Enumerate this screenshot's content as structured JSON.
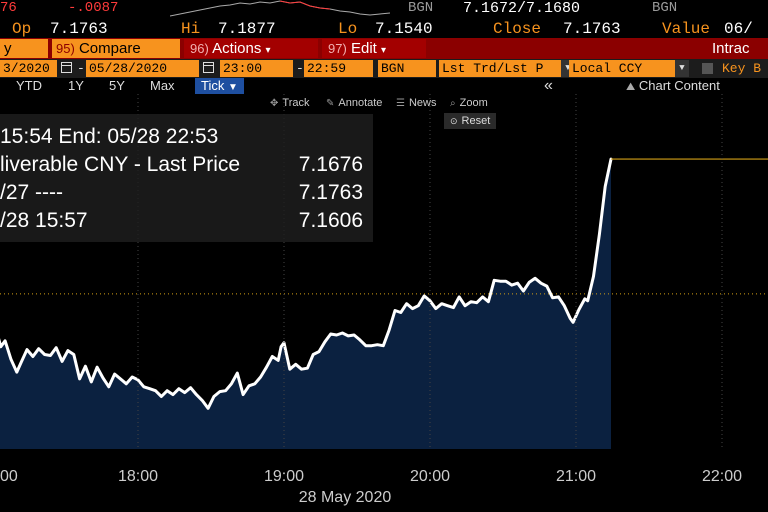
{
  "quote": {
    "code_fragment": "76",
    "net_change": "-.0087",
    "source": "BGN",
    "bid_ask": "7.1672/7.1680",
    "source2": "BGN",
    "open_label": "Op",
    "open": "7.1763",
    "high_label": "Hi",
    "high": "7.1877",
    "low_label": "Lo",
    "low": "7.1540",
    "close_label": "Close",
    "close": "7.1763",
    "value_label": "Value",
    "value_fragment": "06/"
  },
  "menu": {
    "fragment_label": "y",
    "compare_num": "95)",
    "compare_label": "Compare",
    "actions_num": "96)",
    "actions_label": "Actions",
    "edit_num": "97)",
    "edit_label": "Edit",
    "right_label": "Intrac"
  },
  "controls": {
    "start_date": "3/2020",
    "end_date": "05/28/2020",
    "start_time": "23:00",
    "end_time": "22:59",
    "source": "BGN",
    "price_field": "Lst Trd/Lst P",
    "currency": "Local CCY",
    "key_label": "Key B"
  },
  "periods": [
    "YTD",
    "1Y",
    "5Y",
    "Max"
  ],
  "period_selected": "Tick",
  "period_arrow": "▼",
  "chart_content_label": "Chart Content",
  "collapse_icon": "«",
  "tools": {
    "track": "Track",
    "annotate": "Annotate",
    "news": "News",
    "zoom": "Zoom",
    "reset": "Reset"
  },
  "info": {
    "line1": "15:54 End: 05/28 22:53",
    "line2_label": "liverable CNY - Last Price",
    "line2_value": "7.1676",
    "line3_label": "/27 ----",
    "line3_value": "7.1763",
    "line4_label": "/28 15:57",
    "line4_value": "7.1606"
  },
  "chart_data": {
    "type": "area",
    "x_ticks": [
      "00",
      "18:00",
      "19:00",
      "20:00",
      "21:00",
      "22:00"
    ],
    "x_tick_hours": [
      17.0,
      18.0,
      19.0,
      20.0,
      21.0,
      22.0
    ],
    "xlabel": "28 May 2020",
    "ylim": [
      7.15,
      7.185
    ],
    "reference_level": 7.1672,
    "last_value": 7.181,
    "series": [
      {
        "values": [
          [
            16.98,
            7.1636
          ],
          [
            17.02,
            7.164
          ],
          [
            17.06,
            7.1618
          ],
          [
            17.09,
            7.1624
          ],
          [
            17.13,
            7.1605
          ],
          [
            17.17,
            7.1592
          ],
          [
            17.2,
            7.1602
          ],
          [
            17.24,
            7.1615
          ],
          [
            17.28,
            7.1608
          ],
          [
            17.32,
            7.1616
          ],
          [
            17.36,
            7.161
          ],
          [
            17.4,
            7.1609
          ],
          [
            17.44,
            7.1617
          ],
          [
            17.48,
            7.1603
          ],
          [
            17.52,
            7.1614
          ],
          [
            17.56,
            7.161
          ],
          [
            17.6,
            7.1585
          ],
          [
            17.64,
            7.1598
          ],
          [
            17.68,
            7.1582
          ],
          [
            17.72,
            7.1597
          ],
          [
            17.76,
            7.1586
          ],
          [
            17.8,
            7.1577
          ],
          [
            17.84,
            7.159
          ],
          [
            17.88,
            7.1585
          ],
          [
            17.92,
            7.158
          ],
          [
            17.96,
            7.1587
          ],
          [
            18.0,
            7.1584
          ],
          [
            18.04,
            7.1577
          ],
          [
            18.08,
            7.1575
          ],
          [
            18.12,
            7.1573
          ],
          [
            18.16,
            7.1567
          ],
          [
            18.2,
            7.1573
          ],
          [
            18.24,
            7.1569
          ],
          [
            18.28,
            7.1575
          ],
          [
            18.32,
            7.1571
          ],
          [
            18.36,
            7.1576
          ],
          [
            18.4,
            7.1569
          ],
          [
            18.44,
            7.1563
          ],
          [
            18.48,
            7.1555
          ],
          [
            18.52,
            7.1567
          ],
          [
            18.56,
            7.1572
          ],
          [
            18.6,
            7.1573
          ],
          [
            18.64,
            7.158
          ],
          [
            18.68,
            7.1591
          ],
          [
            18.72,
            7.1569
          ],
          [
            18.76,
            7.1578
          ],
          [
            18.8,
            7.158
          ],
          [
            18.84,
            7.1587
          ],
          [
            18.88,
            7.1597
          ],
          [
            18.92,
            7.1608
          ],
          [
            18.96,
            7.1604
          ],
          [
            18.98,
            7.1618
          ],
          [
            19.0,
            7.1622
          ],
          [
            19.04,
            7.1595
          ],
          [
            19.08,
            7.16
          ],
          [
            19.12,
            7.1595
          ],
          [
            19.16,
            7.1596
          ],
          [
            19.2,
            7.161
          ],
          [
            19.24,
            7.1613
          ],
          [
            19.28,
            7.1623
          ],
          [
            19.32,
            7.1631
          ],
          [
            19.36,
            7.163
          ],
          [
            19.4,
            7.1632
          ],
          [
            19.44,
            7.1629
          ],
          [
            19.48,
            7.163
          ],
          [
            19.52,
            7.1625
          ],
          [
            19.56,
            7.1619
          ],
          [
            19.6,
            7.1619
          ],
          [
            19.64,
            7.162
          ],
          [
            19.68,
            7.1619
          ],
          [
            19.72,
            7.1635
          ],
          [
            19.76,
            7.1655
          ],
          [
            19.8,
            7.1653
          ],
          [
            19.84,
            7.1662
          ],
          [
            19.88,
            7.1657
          ],
          [
            19.92,
            7.166
          ],
          [
            19.96,
            7.167
          ],
          [
            20.0,
            7.1665
          ],
          [
            20.04,
            7.1657
          ],
          [
            20.08,
            7.1662
          ],
          [
            20.12,
            7.166
          ],
          [
            20.16,
            7.1658
          ],
          [
            20.2,
            7.1669
          ],
          [
            20.24,
            7.166
          ],
          [
            20.28,
            7.1664
          ],
          [
            20.32,
            7.1663
          ],
          [
            20.36,
            7.1669
          ],
          [
            20.4,
            7.1664
          ],
          [
            20.44,
            7.1686
          ],
          [
            20.48,
            7.1685
          ],
          [
            20.52,
            7.1685
          ],
          [
            20.56,
            7.1681
          ],
          [
            20.6,
            7.1683
          ],
          [
            20.64,
            7.1675
          ],
          [
            20.68,
            7.1684
          ],
          [
            20.72,
            7.1688
          ],
          [
            20.76,
            7.1683
          ],
          [
            20.8,
            7.168
          ],
          [
            20.84,
            7.1668
          ],
          [
            20.88,
            7.1669
          ],
          [
            20.92,
            7.166
          ],
          [
            20.96,
            7.1647
          ],
          [
            20.98,
            7.1643
          ],
          [
            21.02,
            7.1656
          ],
          [
            21.06,
            7.1667
          ],
          [
            21.08,
            7.1665
          ],
          [
            21.12,
            7.169
          ],
          [
            21.16,
            7.1733
          ],
          [
            21.2,
            7.1782
          ],
          [
            21.24,
            7.181
          ]
        ]
      }
    ]
  },
  "colors": {
    "accent_orange": "#f7931e",
    "menu_red": "#8b0000",
    "fill_navy": "#0b2140",
    "line_white": "#ffffff",
    "selected_blue": "#1e4fa0"
  }
}
